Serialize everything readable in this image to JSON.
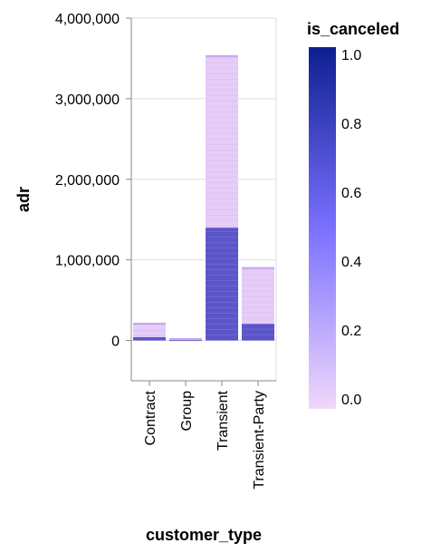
{
  "chart_data": {
    "type": "bar",
    "stacked": true,
    "xlabel": "customer_type",
    "ylabel": "adr",
    "categories": [
      "Contract",
      "Group",
      "Transient",
      "Transient-Party"
    ],
    "ylim": [
      -500000,
      4000000
    ],
    "y_ticks": [
      0,
      1000000,
      2000000,
      3000000,
      4000000
    ],
    "y_tick_labels": [
      "0",
      "1,000,000",
      "2,000,000",
      "3,000,000",
      "4,000,000"
    ],
    "grid": true,
    "series": [
      {
        "is_canceled": 1,
        "values": [
          40000,
          5000,
          1400000,
          210000
        ]
      },
      {
        "is_canceled": 0,
        "values": [
          180000,
          25000,
          2140000,
          700000
        ]
      }
    ],
    "totals": [
      220000,
      30000,
      3540000,
      910000
    ],
    "color_legend": {
      "title": "is_canceled",
      "domain": [
        0,
        1
      ],
      "ticks": [
        "0.0",
        "0.2",
        "0.4",
        "0.6",
        "0.8",
        "1.0"
      ],
      "color_low": "#f0d8fb",
      "color_mid": "#7a70ff",
      "color_high": "#0d1f90",
      "placement": "right"
    }
  }
}
